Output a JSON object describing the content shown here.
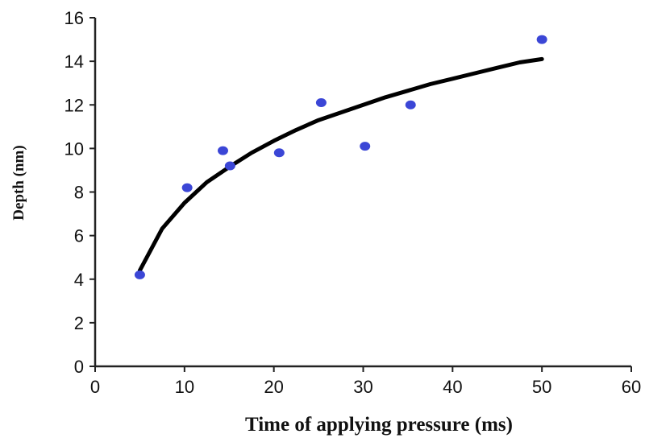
{
  "chart_data": {
    "type": "scatter",
    "title": "",
    "xlabel": "Time of applying pressure (ms)",
    "ylabel": "Depth (nm)",
    "xlim": [
      0,
      60
    ],
    "ylim": [
      0,
      16
    ],
    "x_ticks": [
      0,
      10,
      20,
      30,
      40,
      50,
      60
    ],
    "y_ticks": [
      0,
      2,
      4,
      6,
      8,
      10,
      12,
      14,
      16
    ],
    "grid": false,
    "legend": "none",
    "series": [
      {
        "kind": "points",
        "color": "#3b46d6",
        "x": [
          5,
          10.3,
          14.3,
          15.1,
          20.6,
          25.3,
          30.2,
          35.3,
          50.0
        ],
        "y": [
          4.2,
          8.2,
          9.9,
          9.2,
          9.8,
          12.1,
          10.1,
          12.0,
          15.0
        ]
      },
      {
        "kind": "fit",
        "color": "#000000",
        "x": [
          5,
          7.5,
          10,
          12.5,
          15,
          17.5,
          20,
          22.5,
          25,
          27.5,
          30,
          32.5,
          35,
          37.5,
          40,
          42.5,
          45,
          47.5,
          50
        ],
        "y": [
          4.4,
          6.32,
          7.5,
          8.45,
          9.15,
          9.8,
          10.35,
          10.85,
          11.3,
          11.65,
          12.0,
          12.35,
          12.65,
          12.95,
          13.2,
          13.45,
          13.7,
          13.95,
          14.1
        ]
      }
    ]
  }
}
